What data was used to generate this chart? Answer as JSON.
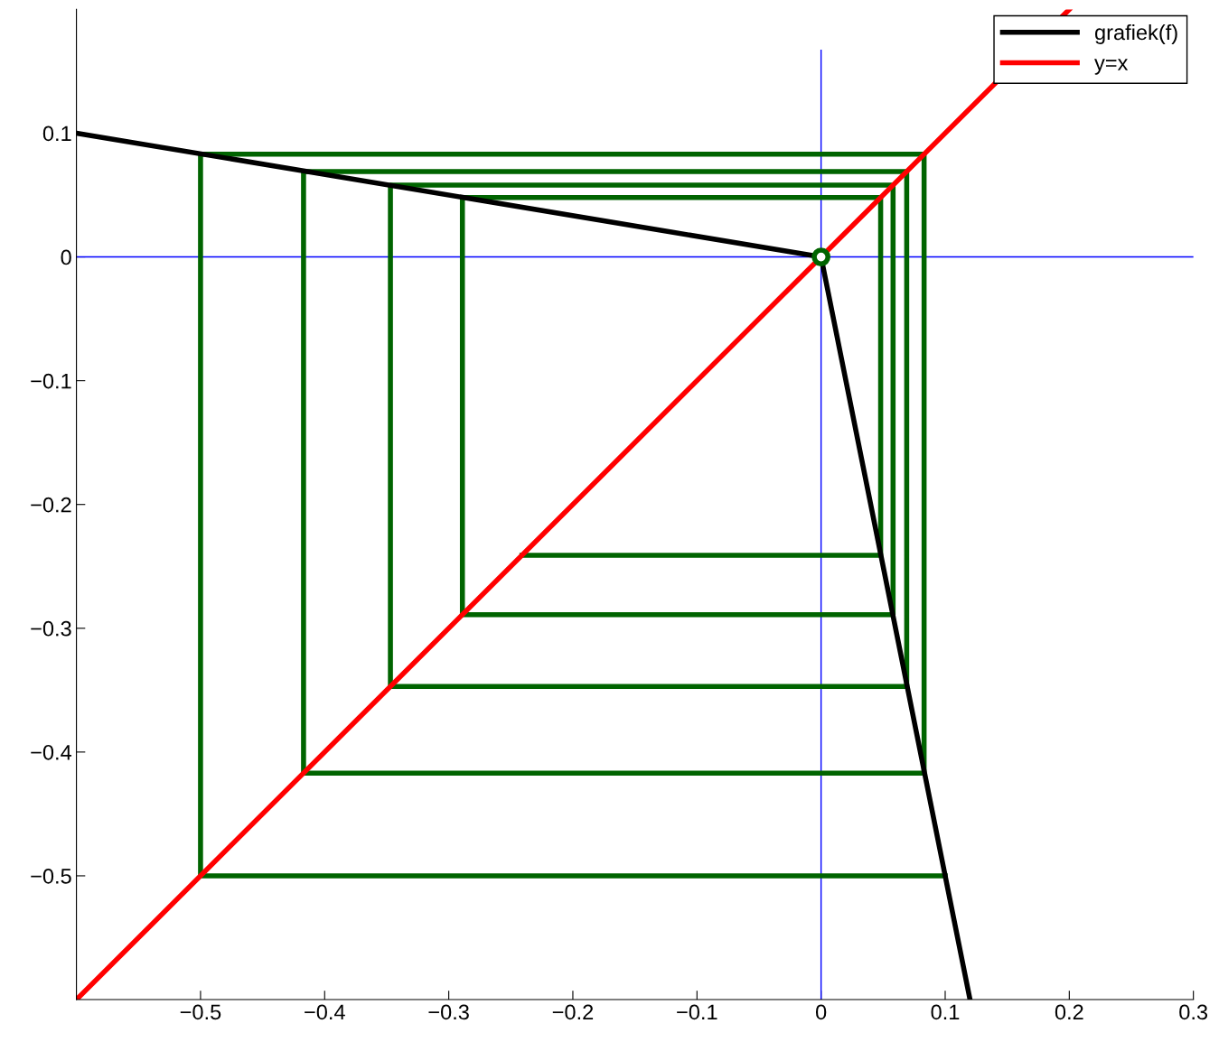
{
  "chart_data": {
    "type": "line",
    "xlim": [
      -0.6,
      0.3
    ],
    "ylim": [
      -0.6,
      0.2
    ],
    "xticks": [
      {
        "value": -0.5,
        "label": "−0.5"
      },
      {
        "value": -0.4,
        "label": "−0.4"
      },
      {
        "value": -0.3,
        "label": "−0.3"
      },
      {
        "value": -0.2,
        "label": "−0.2"
      },
      {
        "value": -0.1,
        "label": "−0.1"
      },
      0,
      0.1,
      0.2,
      0.3
    ],
    "yticks": [
      {
        "value": -0.5,
        "label": "−0.5"
      },
      {
        "value": -0.4,
        "label": "−0.4"
      },
      {
        "value": -0.3,
        "label": "−0.3"
      },
      {
        "value": -0.2,
        "label": "−0.2"
      },
      {
        "value": -0.1,
        "label": "−0.1"
      },
      0,
      0.1
    ],
    "grid": false,
    "legend": "top right",
    "series": [
      {
        "color": "#0000ff",
        "x": [
          0,
          0
        ],
        "values": [
          -0.6,
          0.167
        ]
      },
      {
        "color": "#0000ff",
        "x": [
          -0.6,
          0.3
        ],
        "values": [
          0,
          0
        ]
      },
      {
        "color": "#006400",
        "x": [
          0.1,
          -0.5,
          -0.5,
          0.083,
          0.083,
          -0.417,
          -0.417,
          0.069,
          0.069,
          -0.347,
          -0.347,
          0.058,
          0.058,
          -0.289,
          -0.289,
          0.048,
          0.048,
          -0.241
        ],
        "values": [
          -0.5,
          -0.5,
          0.083,
          0.083,
          -0.417,
          -0.417,
          0.069,
          0.069,
          -0.347,
          -0.347,
          0.058,
          0.058,
          -0.289,
          -0.289,
          0.048,
          0.048,
          -0.241,
          -0.241
        ]
      },
      {
        "name": "grafiek(f)",
        "color": "#000000",
        "x": [
          -0.6,
          0,
          0.12
        ],
        "values": [
          0.1,
          0,
          -0.6
        ]
      },
      {
        "name": "y=x",
        "color": "#ff0000",
        "x": [
          -0.6,
          0.2
        ],
        "values": [
          -0.6,
          0.2
        ]
      },
      {
        "type": "scatter",
        "marker": "circle",
        "color": "#006400",
        "x": [
          0
        ],
        "values": [
          0
        ]
      }
    ]
  }
}
